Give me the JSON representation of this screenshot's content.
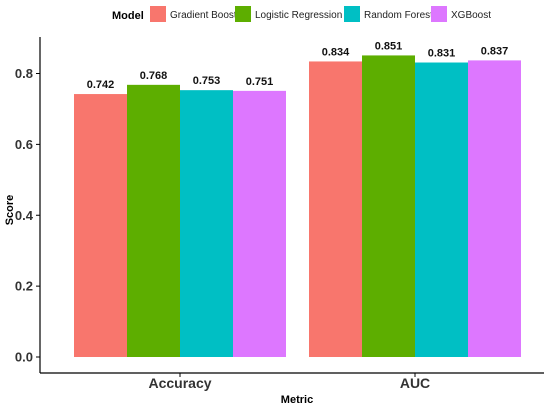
{
  "chart_data": {
    "type": "bar",
    "title": "",
    "xlabel": "Metric",
    "ylabel": "Score",
    "legend_title": "Model",
    "legend_position": "top",
    "grid": false,
    "ylim": [
      0,
      0.9
    ],
    "yticks": [
      "0.0",
      "0.2",
      "0.4",
      "0.6",
      "0.8"
    ],
    "ytick_values": [
      0,
      0.2,
      0.4,
      0.6,
      0.8
    ],
    "categories": [
      "Accuracy",
      "AUC"
    ],
    "series": [
      {
        "name": "Gradient Boost",
        "color": "#F8766D",
        "values": [
          0.742,
          0.834
        ],
        "labels": [
          "0.742",
          "0.834"
        ]
      },
      {
        "name": "Logistic Regression",
        "color": "#5DAE00",
        "values": [
          0.768,
          0.851
        ],
        "labels": [
          "0.768",
          "0.851"
        ]
      },
      {
        "name": "Random Forest",
        "color": "#00BFC4",
        "values": [
          0.753,
          0.831
        ],
        "labels": [
          "0.753",
          "0.831"
        ]
      },
      {
        "name": "XGBoost",
        "color": "#DD77FF",
        "values": [
          0.751,
          0.837
        ],
        "labels": [
          "0.751",
          "0.837"
        ]
      }
    ]
  }
}
